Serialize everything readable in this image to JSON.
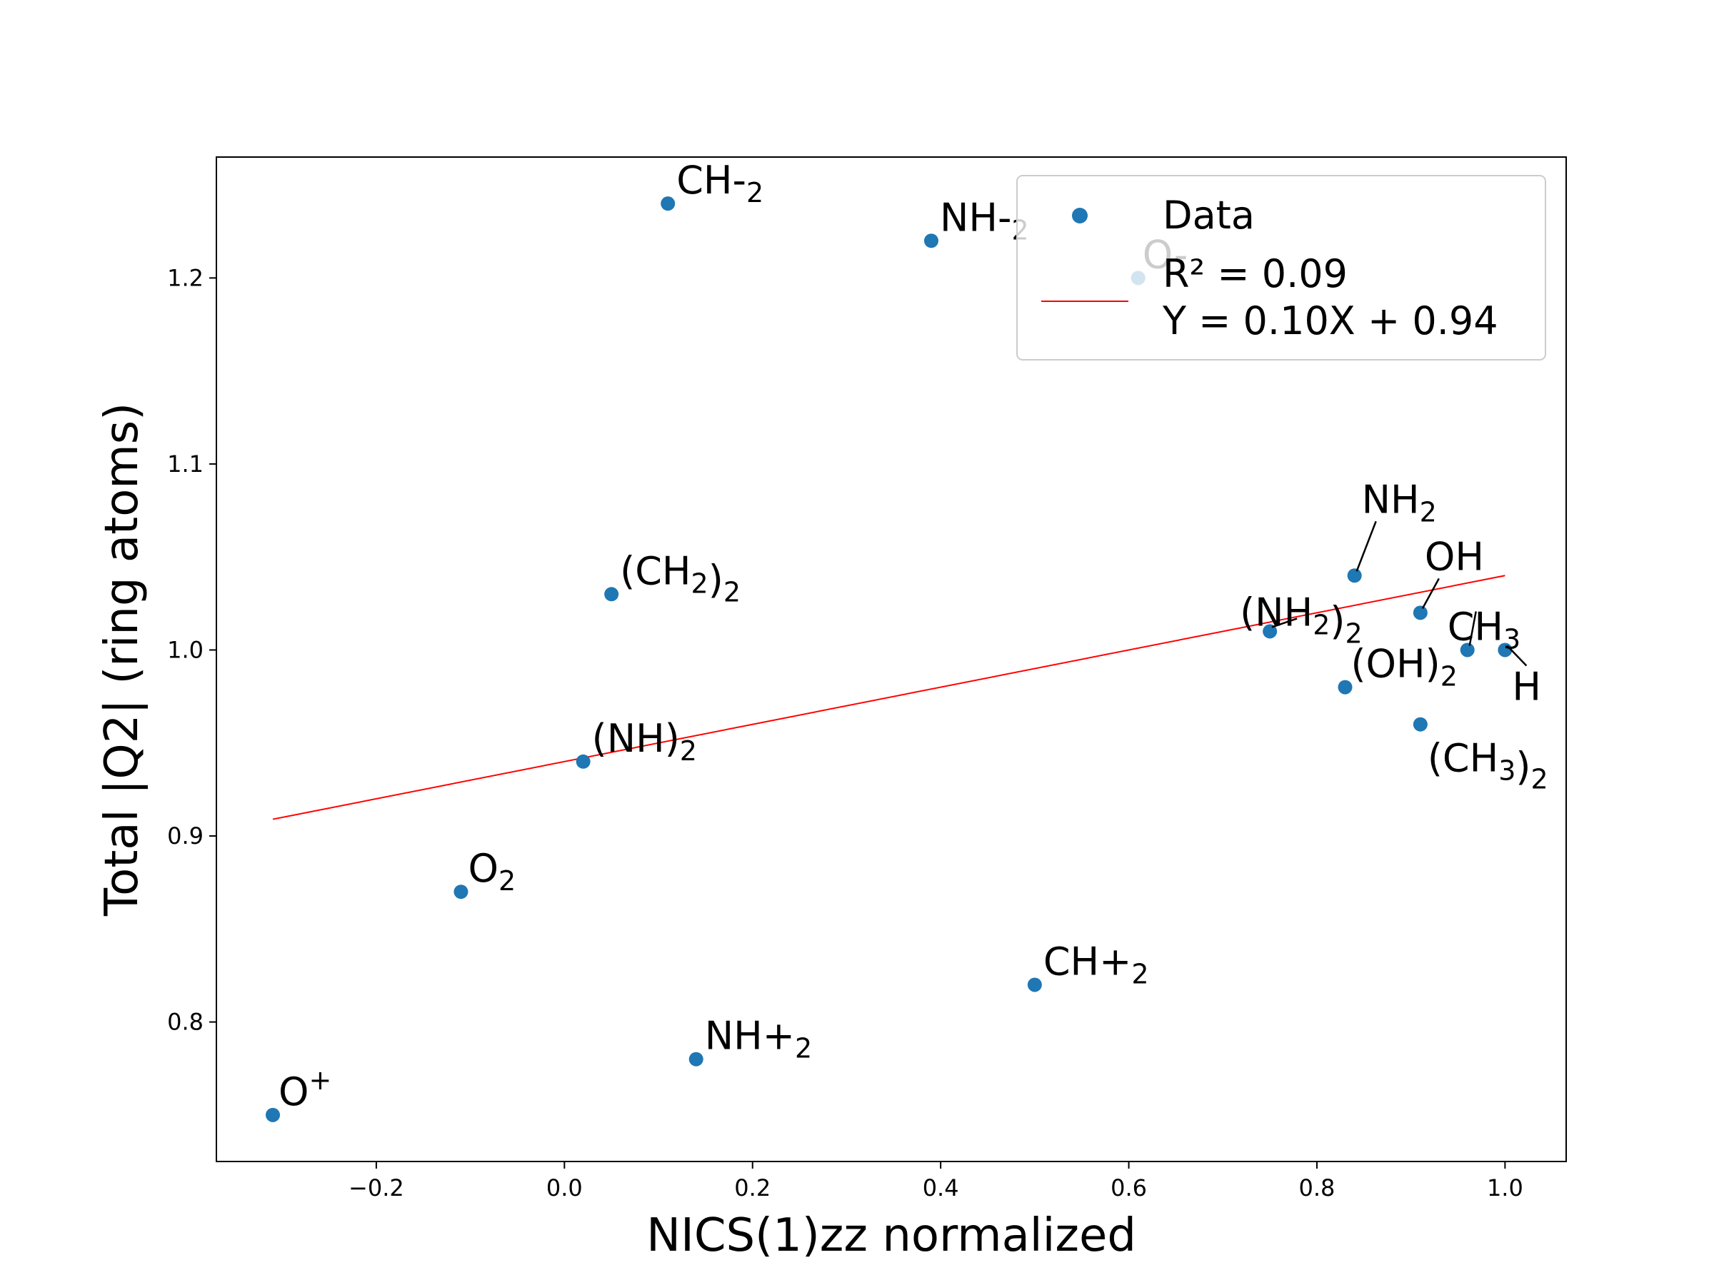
{
  "chart_data": {
    "type": "scatter",
    "xlabel": "NICS(1)zz normalized",
    "ylabel": "Total |Q2| (ring atoms)",
    "xlim": [
      -0.37,
      1.065
    ],
    "ylim": [
      0.725,
      1.265
    ],
    "xticks": [
      "−0.2",
      "0.0",
      "0.2",
      "0.4",
      "0.6",
      "0.8",
      "1.0"
    ],
    "yticks": [
      "0.8",
      "0.9",
      "1.0",
      "1.1",
      "1.2"
    ],
    "grid": false,
    "point_color": "#1f77b4",
    "fit_color": "#ff0000",
    "legend": {
      "placement": "top-right",
      "data_label": "Data",
      "fit_label_line1": "R² = 0.09",
      "fit_label_line2": "Y = 0.10X + 0.94"
    },
    "fit": {
      "slope": 0.1,
      "intercept": 0.94,
      "r2": 0.09,
      "x_range": [
        -0.31,
        1.0
      ]
    },
    "points": [
      {
        "x": 0.11,
        "y": 1.24,
        "label_base": "CH-",
        "label_sub": "2",
        "label_sup": ""
      },
      {
        "x": 0.39,
        "y": 1.22,
        "label_base": "NH-",
        "label_sub": "2",
        "label_sup": ""
      },
      {
        "x": 0.61,
        "y": 1.2,
        "label_base": "O-",
        "label_sub": "",
        "label_sup": ""
      },
      {
        "x": 0.05,
        "y": 1.03,
        "label_base": "(CH",
        "label_sub": "2",
        "label_sup": "",
        "label_tail": ")",
        "label_tail_sub": "2"
      },
      {
        "x": 0.84,
        "y": 1.04,
        "label_base": "NH",
        "label_sub": "2",
        "label_sup": ""
      },
      {
        "x": 0.91,
        "y": 1.02,
        "label_base": "OH",
        "label_sub": "",
        "label_sup": ""
      },
      {
        "x": 0.75,
        "y": 1.01,
        "label_base": "(NH",
        "label_sub": "2",
        "label_sup": "",
        "label_tail": ")",
        "label_tail_sub": "2"
      },
      {
        "x": 0.96,
        "y": 1.0,
        "label_base": "CH",
        "label_sub": "3",
        "label_sup": ""
      },
      {
        "x": 1.0,
        "y": 1.0,
        "label_base": "H",
        "label_sub": "",
        "label_sup": ""
      },
      {
        "x": 0.83,
        "y": 0.98,
        "label_base": "(OH)",
        "label_sub": "2",
        "label_sup": ""
      },
      {
        "x": 0.91,
        "y": 0.96,
        "label_base": "(CH",
        "label_sub": "3",
        "label_sup": "",
        "label_tail": ")",
        "label_tail_sub": "2"
      },
      {
        "x": 0.02,
        "y": 0.94,
        "label_base": "(NH)",
        "label_sub": "2",
        "label_sup": ""
      },
      {
        "x": -0.11,
        "y": 0.87,
        "label_base": "O",
        "label_sub": "2",
        "label_sup": ""
      },
      {
        "x": 0.5,
        "y": 0.82,
        "label_base": "CH+",
        "label_sub": "2",
        "label_sup": ""
      },
      {
        "x": 0.14,
        "y": 0.78,
        "label_base": "NH+",
        "label_sub": "2",
        "label_sup": ""
      },
      {
        "x": -0.31,
        "y": 0.75,
        "label_base": "O",
        "label_sub": "",
        "label_sup": "+"
      }
    ]
  }
}
